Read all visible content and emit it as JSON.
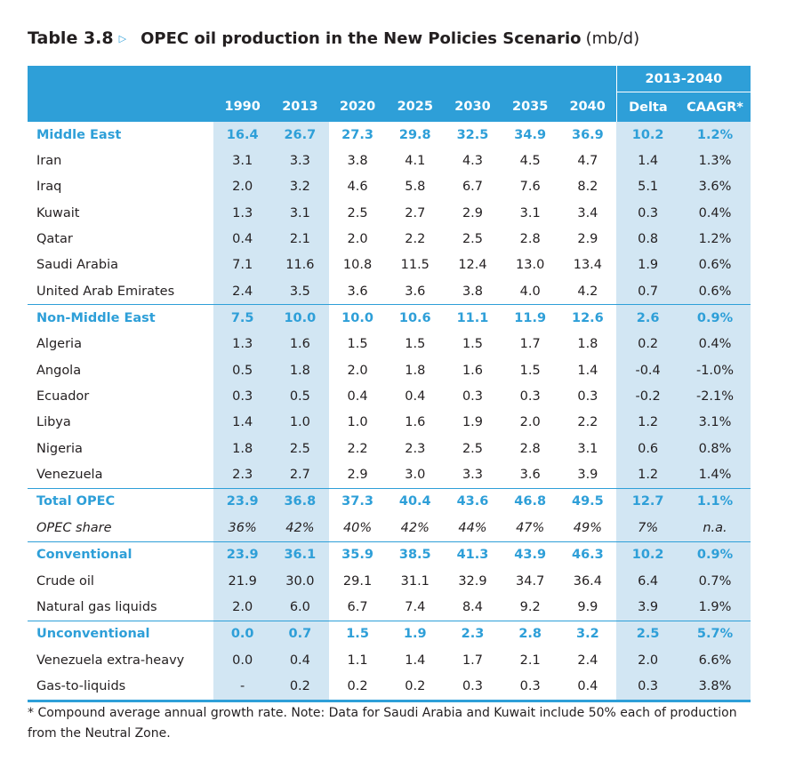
{
  "title": {
    "number": "Table 3.8",
    "arrow": "▷",
    "name": "OPEC oil production in the New Policies Scenario",
    "unit": "(mb/d)"
  },
  "header": {
    "span_label": "2013-2040",
    "columns": [
      "1990",
      "2013",
      "2020",
      "2025",
      "2030",
      "2035",
      "2040",
      "Delta",
      "CAAGR*"
    ]
  },
  "rows": [
    {
      "type": "group",
      "label": "Middle East",
      "values": [
        "16.4",
        "26.7",
        "27.3",
        "29.8",
        "32.5",
        "34.9",
        "36.9",
        "10.2",
        "1.2%"
      ]
    },
    {
      "type": "item",
      "label": "Iran",
      "values": [
        "3.1",
        "3.3",
        "3.8",
        "4.1",
        "4.3",
        "4.5",
        "4.7",
        "1.4",
        "1.3%"
      ]
    },
    {
      "type": "item",
      "label": "Iraq",
      "values": [
        "2.0",
        "3.2",
        "4.6",
        "5.8",
        "6.7",
        "7.6",
        "8.2",
        "5.1",
        "3.6%"
      ]
    },
    {
      "type": "item",
      "label": "Kuwait",
      "values": [
        "1.3",
        "3.1",
        "2.5",
        "2.7",
        "2.9",
        "3.1",
        "3.4",
        "0.3",
        "0.4%"
      ]
    },
    {
      "type": "item",
      "label": "Qatar",
      "values": [
        "0.4",
        "2.1",
        "2.0",
        "2.2",
        "2.5",
        "2.8",
        "2.9",
        "0.8",
        "1.2%"
      ]
    },
    {
      "type": "item",
      "label": "Saudi Arabia",
      "values": [
        "7.1",
        "11.6",
        "10.8",
        "11.5",
        "12.4",
        "13.0",
        "13.4",
        "1.9",
        "0.6%"
      ]
    },
    {
      "type": "item",
      "label": "United Arab Emirates",
      "values": [
        "2.4",
        "3.5",
        "3.6",
        "3.6",
        "3.8",
        "4.0",
        "4.2",
        "0.7",
        "0.6%"
      ]
    },
    {
      "type": "group",
      "label": "Non-Middle East",
      "values": [
        "7.5",
        "10.0",
        "10.0",
        "10.6",
        "11.1",
        "11.9",
        "12.6",
        "2.6",
        "0.9%"
      ]
    },
    {
      "type": "item",
      "label": "Algeria",
      "values": [
        "1.3",
        "1.6",
        "1.5",
        "1.5",
        "1.5",
        "1.7",
        "1.8",
        "0.2",
        "0.4%"
      ]
    },
    {
      "type": "item",
      "label": "Angola",
      "values": [
        "0.5",
        "1.8",
        "2.0",
        "1.8",
        "1.6",
        "1.5",
        "1.4",
        "-0.4",
        "-1.0%"
      ]
    },
    {
      "type": "item",
      "label": "Ecuador",
      "values": [
        "0.3",
        "0.5",
        "0.4",
        "0.4",
        "0.3",
        "0.3",
        "0.3",
        "-0.2",
        "-2.1%"
      ]
    },
    {
      "type": "item",
      "label": "Libya",
      "values": [
        "1.4",
        "1.0",
        "1.0",
        "1.6",
        "1.9",
        "2.0",
        "2.2",
        "1.2",
        "3.1%"
      ]
    },
    {
      "type": "item",
      "label": "Nigeria",
      "values": [
        "1.8",
        "2.5",
        "2.2",
        "2.3",
        "2.5",
        "2.8",
        "3.1",
        "0.6",
        "0.8%"
      ]
    },
    {
      "type": "item",
      "label": "Venezuela",
      "values": [
        "2.3",
        "2.7",
        "2.9",
        "3.0",
        "3.3",
        "3.6",
        "3.9",
        "1.2",
        "1.4%"
      ]
    },
    {
      "type": "group",
      "label": "Total OPEC",
      "values": [
        "23.9",
        "36.8",
        "37.3",
        "40.4",
        "43.6",
        "46.8",
        "49.5",
        "12.7",
        "1.1%"
      ]
    },
    {
      "type": "share",
      "label": "OPEC share",
      "values": [
        "36%",
        "42%",
        "40%",
        "42%",
        "44%",
        "47%",
        "49%",
        "7%",
        "n.a."
      ]
    },
    {
      "type": "group",
      "label": "Conventional",
      "values": [
        "23.9",
        "36.1",
        "35.9",
        "38.5",
        "41.3",
        "43.9",
        "46.3",
        "10.2",
        "0.9%"
      ]
    },
    {
      "type": "item",
      "label": "Crude oil",
      "values": [
        "21.9",
        "30.0",
        "29.1",
        "31.1",
        "32.9",
        "34.7",
        "36.4",
        "6.4",
        "0.7%"
      ]
    },
    {
      "type": "item",
      "label": "Natural gas liquids",
      "values": [
        "2.0",
        "6.0",
        "6.7",
        "7.4",
        "8.4",
        "9.2",
        "9.9",
        "3.9",
        "1.9%"
      ]
    },
    {
      "type": "group",
      "label": "Unconventional",
      "values": [
        "0.0",
        "0.7",
        "1.5",
        "1.9",
        "2.3",
        "2.8",
        "3.2",
        "2.5",
        "5.7%"
      ]
    },
    {
      "type": "item",
      "label": "Venezuela extra-heavy",
      "values": [
        "0.0",
        "0.4",
        "1.1",
        "1.4",
        "1.7",
        "2.1",
        "2.4",
        "2.0",
        "6.6%"
      ]
    },
    {
      "type": "item",
      "label": "Gas-to-liquids",
      "values": [
        "-",
        "0.2",
        "0.2",
        "0.2",
        "0.3",
        "0.3",
        "0.4",
        "0.3",
        "3.8%"
      ]
    }
  ],
  "footnote": "* Compound average annual growth rate. Note: Data for Saudi Arabia and Kuwait include 50% each of production from the Neutral Zone.",
  "colors": {
    "accent": "#2e9fd8",
    "shade": "#d2e6f3",
    "text": "#231f20"
  }
}
